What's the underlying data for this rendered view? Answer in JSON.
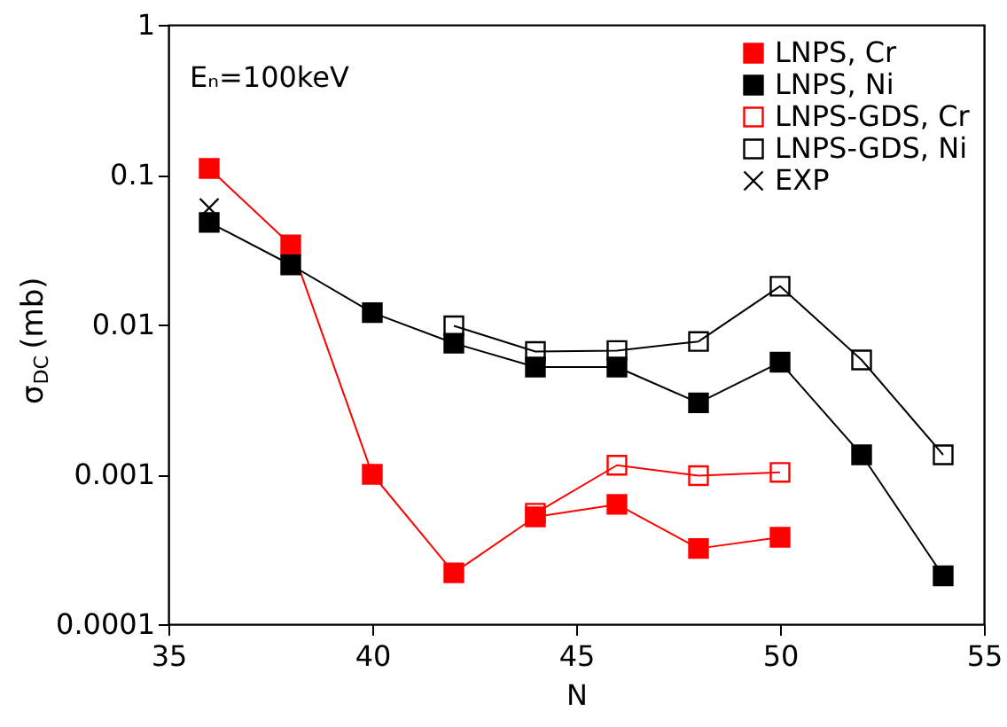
{
  "chart_data": {
    "type": "line",
    "xlabel": "N",
    "ylabel": "σ$_{DC}$ (mb)",
    "annotations": [
      "Eₙ=100keV"
    ],
    "log": "y",
    "xlim": [
      35,
      55
    ],
    "xticks": [
      35,
      40,
      45,
      50,
      55
    ],
    "ylim": [
      0.0001,
      1
    ],
    "yticks": [
      {
        "value": 0.0001,
        "label": "0.0001"
      },
      {
        "value": 0.001,
        "label": "0.001"
      },
      {
        "value": 0.01,
        "label": "0.01"
      },
      {
        "value": 0.1,
        "label": "0.1"
      },
      {
        "value": 1,
        "label": "1"
      }
    ],
    "grid": false,
    "legend": "top right",
    "line_style": "solid",
    "series": [
      {
        "name": "LNPS, Cr",
        "marker": "square",
        "color": "#ff0000",
        "x": [
          36,
          38,
          40,
          42,
          44,
          46,
          48,
          50
        ],
        "values": [
          0.11,
          0.034,
          0.001,
          0.00022,
          0.00052,
          0.00063,
          0.00032,
          0.00038
        ]
      },
      {
        "name": "LNPS, Ni",
        "marker": "square",
        "color": "#000000",
        "x": [
          36,
          38,
          40,
          42,
          44,
          46,
          48,
          50,
          52,
          54
        ],
        "values": [
          0.048,
          0.025,
          0.012,
          0.0075,
          0.0052,
          0.0052,
          0.003,
          0.0056,
          0.00135,
          0.00021
        ]
      },
      {
        "name": "LNPS-GDS, Cr",
        "marker": "square-open",
        "color": "#ff0000",
        "x": [
          44,
          46,
          48,
          50
        ],
        "values": [
          0.00055,
          0.00115,
          0.00098,
          0.00103
        ]
      },
      {
        "name": "LNPS-GDS, Ni",
        "marker": "square-open",
        "color": "#000000",
        "x": [
          42,
          44,
          46,
          48,
          50,
          52,
          54
        ],
        "values": [
          0.0098,
          0.0066,
          0.0067,
          0.0077,
          0.018,
          0.0058,
          0.00135
        ]
      },
      {
        "name": "EXP",
        "type": "scatter",
        "marker": "cross",
        "color": "#000000",
        "x": [
          36
        ],
        "values": [
          0.06
        ]
      }
    ]
  }
}
